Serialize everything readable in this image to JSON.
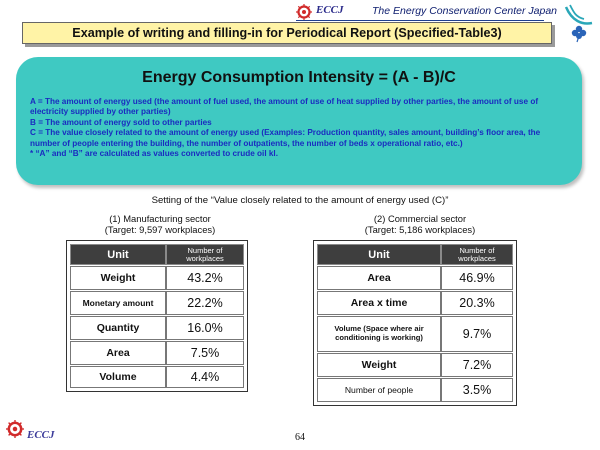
{
  "header": {
    "brand": "ECCJ",
    "organization": "The Energy Conservation Center Japan",
    "title": "Example of writing and filling-in for Periodical Report (Specified-Table3)"
  },
  "panel": {
    "formula": "Energy Consumption Intensity = (A - B)/C",
    "definitions": [
      "A = The amount of energy used (the amount of fuel used, the amount of use of heat supplied by other parties, the amount of use of electricity supplied by other parties)",
      "B = The amount of energy sold to other parties",
      "C = The value closely related to the amount of energy used (Examples: Production quantity, sales amount, building’s floor area, the number of people entering the building, the number of outpatients, the number of beds x operational ratio, etc.)",
      "* “A” and “B” are calculated as values converted to crude oil kl."
    ]
  },
  "setting": "Setting of the “Value closely related to the amount of energy used (C)”",
  "manufacturing": {
    "title": "(1) Manufacturing sector",
    "target": "(Target: 9,597 workplaces)",
    "header_unit": "Unit",
    "header_count_1": "Number of",
    "header_count_2": "workplaces",
    "rows": [
      {
        "unit": "Weight",
        "value": "43.2%"
      },
      {
        "unit": "Monetary amount",
        "value": "22.2%"
      },
      {
        "unit": "Quantity",
        "value": "16.0%"
      },
      {
        "unit": "Area",
        "value": "7.5%"
      },
      {
        "unit": "Volume",
        "value": "4.4%"
      }
    ]
  },
  "commercial": {
    "title": "(2) Commercial sector",
    "target": "(Target: 5,186 workplaces)",
    "header_unit": "Unit",
    "header_count_1": "Number of",
    "header_count_2": "workplaces",
    "rows": [
      {
        "unit": "Area",
        "value": "46.9%"
      },
      {
        "unit": "Area x time",
        "value": "20.3%"
      },
      {
        "unit": "Volume (Space where air conditioning is working)",
        "value": "9.7%"
      },
      {
        "unit": "Weight",
        "value": "7.2%"
      },
      {
        "unit": "Number of people",
        "value": "3.5%"
      }
    ]
  },
  "footer": {
    "brand": "ECCJ",
    "page_number": "64"
  },
  "colors": {
    "panel": "#3fc9c2",
    "title_bg": "#fff3a6",
    "definition_text": "#1a2cc0",
    "table_header": "#3e3e3e",
    "brand_red": "#d12a2a"
  }
}
